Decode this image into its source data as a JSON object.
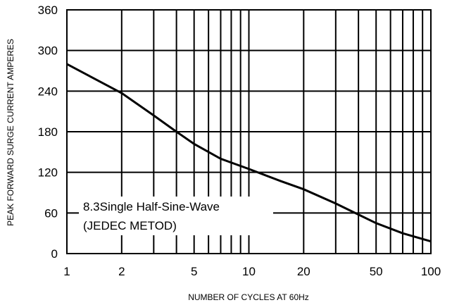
{
  "chart_data": {
    "type": "line",
    "title": "",
    "xlabel": "NUMBER OF CYCLES AT 60Hz",
    "ylabel": "PEAK FORWARD SURGE CURRENT AMPERES",
    "x_scale": "log",
    "xlim": [
      1,
      100
    ],
    "ylim": [
      0,
      360
    ],
    "x_ticks": [
      1,
      2,
      5,
      10,
      20,
      50,
      100
    ],
    "y_ticks": [
      0,
      60,
      120,
      180,
      240,
      300,
      360
    ],
    "grid": true,
    "annotations": [
      "8.3Single Half-Sine-Wave",
      "(JEDEC METOD)"
    ],
    "series": [
      {
        "x": [
          1,
          2,
          3,
          4,
          5,
          7,
          10,
          15,
          20,
          30,
          50,
          70,
          100
        ],
        "y": [
          280,
          237,
          204,
          180,
          162,
          140,
          125,
          107,
          95,
          74,
          45,
          30,
          18
        ]
      }
    ]
  }
}
